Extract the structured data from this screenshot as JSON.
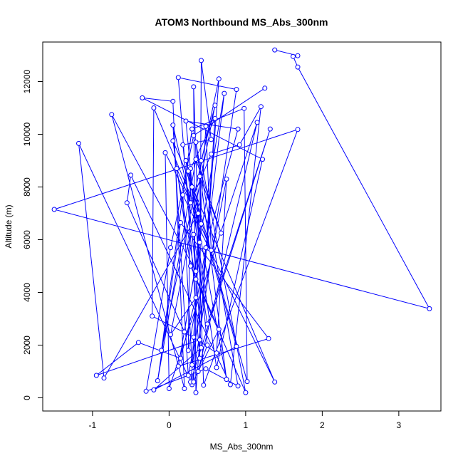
{
  "chart_data": {
    "type": "line",
    "title": "ATOM3 Northbound MS_Abs_300nm",
    "xlabel": "MS_Abs_300nm",
    "ylabel": "Altitude (m)",
    "xlim": [
      -1.65,
      3.55
    ],
    "ylim": [
      -500,
      13500
    ],
    "x_ticks": [
      -1,
      0,
      1,
      2,
      3
    ],
    "y_ticks": [
      0,
      2000,
      4000,
      6000,
      8000,
      10000,
      12000
    ],
    "grid": false,
    "legend": "none",
    "series_color": "#0000ff",
    "marker": "open-circle",
    "points": [
      [
        1.38,
        13200
      ],
      [
        1.68,
        12980
      ],
      [
        1.62,
        12950
      ],
      [
        1.68,
        12550
      ],
      [
        3.4,
        3380
      ],
      [
        -1.5,
        7150
      ],
      [
        1.68,
        10180
      ],
      [
        0.45,
        480
      ],
      [
        0.32,
        11800
      ],
      [
        0.35,
        200
      ],
      [
        0.65,
        12100
      ],
      [
        -0.1,
        1800
      ],
      [
        0.3,
        10200
      ],
      [
        0.98,
        10980
      ],
      [
        1.02,
        620
      ],
      [
        0.22,
        9000
      ],
      [
        0.62,
        1150
      ],
      [
        1.22,
        9050
      ],
      [
        -0.35,
        11380
      ],
      [
        0.05,
        11250
      ],
      [
        0.2,
        350
      ],
      [
        -0.75,
        10750
      ],
      [
        0.35,
        4800
      ],
      [
        0.18,
        9600
      ],
      [
        0.55,
        9800
      ],
      [
        0.42,
        12800
      ],
      [
        0.4,
        1500
      ],
      [
        0.12,
        12150
      ],
      [
        0.88,
        11700
      ],
      [
        0.3,
        500
      ],
      [
        -1.18,
        9650
      ],
      [
        -0.85,
        750
      ],
      [
        0.38,
        7000
      ],
      [
        -0.2,
        11000
      ],
      [
        -0.22,
        3100
      ],
      [
        0.32,
        2300
      ],
      [
        0.62,
        1700
      ],
      [
        0.75,
        8300
      ],
      [
        0.25,
        850
      ],
      [
        0.05,
        10350
      ],
      [
        0.28,
        7400
      ],
      [
        0.55,
        9250
      ],
      [
        0.92,
        9600
      ],
      [
        1.2,
        11050
      ],
      [
        0.8,
        500
      ],
      [
        -0.5,
        8450
      ],
      [
        -0.55,
        7400
      ],
      [
        0.2,
        2500
      ],
      [
        0.72,
        11550
      ],
      [
        0.28,
        600
      ],
      [
        1.32,
        10200
      ],
      [
        0.5,
        2800
      ],
      [
        0.32,
        6200
      ],
      [
        0.42,
        1900
      ],
      [
        -0.2,
        300
      ],
      [
        0.88,
        1950
      ],
      [
        0.3,
        8000
      ],
      [
        0.4,
        5900
      ],
      [
        0.12,
        1200
      ],
      [
        1.3,
        2250
      ],
      [
        0.15,
        6650
      ],
      [
        -0.15,
        650
      ],
      [
        0.35,
        9050
      ],
      [
        0.68,
        6250
      ],
      [
        0.4,
        8400
      ],
      [
        0.32,
        600
      ],
      [
        0.5,
        2000
      ],
      [
        0.22,
        10500
      ],
      [
        0.9,
        10200
      ],
      [
        0.48,
        5700
      ],
      [
        0.25,
        1800
      ],
      [
        0.28,
        8700
      ],
      [
        0.6,
        10600
      ],
      [
        0.4,
        2200
      ],
      [
        -0.95,
        850
      ],
      [
        -0.4,
        2100
      ],
      [
        0.15,
        1500
      ],
      [
        0.35,
        3800
      ],
      [
        0.02,
        2400
      ],
      [
        0.6,
        11100
      ],
      [
        0.42,
        9000
      ],
      [
        1.0,
        200
      ],
      [
        0.35,
        4500
      ],
      [
        0.1,
        8700
      ],
      [
        0.55,
        5600
      ],
      [
        0.48,
        10300
      ],
      [
        0.3,
        1250
      ],
      [
        0.18,
        7700
      ],
      [
        1.38,
        600
      ],
      [
        0.05,
        9750
      ],
      [
        0.28,
        5000
      ],
      [
        0.65,
        2600
      ],
      [
        0.38,
        1000
      ],
      [
        1.15,
        10450
      ],
      [
        0.0,
        350
      ],
      [
        -0.05,
        9300
      ],
      [
        0.42,
        6600
      ],
      [
        0.25,
        8600
      ],
      [
        0.75,
        700
      ],
      [
        0.35,
        9700
      ],
      [
        0.9,
        450
      ],
      [
        0.48,
        1100
      ],
      [
        -0.3,
        250
      ],
      [
        0.02,
        5700
      ],
      [
        0.32,
        9950
      ],
      [
        1.25,
        11750
      ]
    ]
  }
}
